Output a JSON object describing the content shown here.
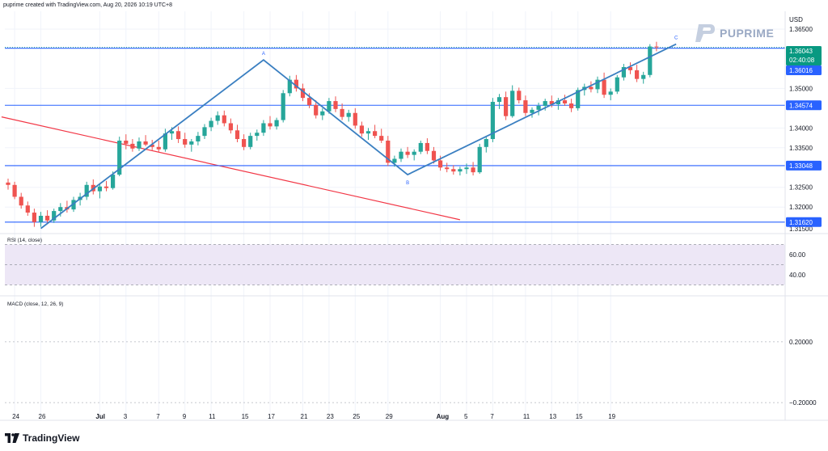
{
  "header": {
    "text": "puprime created with TradingView.com, Aug 20, 2026 10:19 UTC+8"
  },
  "brand": {
    "name": "PUPRIME"
  },
  "footer": {
    "logo_text": "TradingView"
  },
  "colors": {
    "up": "#26a69a",
    "down": "#ef5350",
    "blue_line": "#2962ff",
    "trend_line": "#3a7fc1",
    "red_line": "#f23645",
    "price_tag_green": "#089981",
    "rsi_band": "#ede7f6"
  },
  "chart_data": [
    {
      "type": "candlestick",
      "title": "",
      "currency_label": "USD",
      "y_ticks": [
        "1.36500",
        "1.35000",
        "1.34000",
        "1.33500",
        "1.32500",
        "1.32000"
      ],
      "y_tick_values": [
        1.365,
        1.35,
        1.34,
        1.335,
        1.325,
        1.32
      ],
      "ylim": [
        1.3135,
        1.3695
      ],
      "x_tick_labels": [
        "24",
        "26",
        "Jul",
        "3",
        "7",
        "9",
        "11",
        "15",
        "17",
        "21",
        "23",
        "25",
        "29",
        "Aug",
        "5",
        "7",
        "11",
        "13",
        "15",
        "19"
      ],
      "x_tick_bars": [
        1,
        5,
        14,
        18,
        23,
        27,
        31,
        36,
        40,
        45,
        49,
        53,
        58,
        66,
        70,
        74,
        79,
        83,
        87,
        92
      ],
      "bar_count": 100,
      "candles": [
        {
          "o": 1.3262,
          "h": 1.3272,
          "l": 1.3244,
          "c": 1.3256
        },
        {
          "o": 1.3256,
          "h": 1.3264,
          "l": 1.322,
          "c": 1.3226
        },
        {
          "o": 1.3226,
          "h": 1.3236,
          "l": 1.3196,
          "c": 1.3204
        },
        {
          "o": 1.3204,
          "h": 1.3214,
          "l": 1.3178,
          "c": 1.3186
        },
        {
          "o": 1.3186,
          "h": 1.3196,
          "l": 1.315,
          "c": 1.3162
        },
        {
          "o": 1.3162,
          "h": 1.3188,
          "l": 1.315,
          "c": 1.3178
        },
        {
          "o": 1.3178,
          "h": 1.3192,
          "l": 1.3158,
          "c": 1.3166
        },
        {
          "o": 1.3166,
          "h": 1.3196,
          "l": 1.316,
          "c": 1.319
        },
        {
          "o": 1.319,
          "h": 1.321,
          "l": 1.3176,
          "c": 1.32
        },
        {
          "o": 1.32,
          "h": 1.3216,
          "l": 1.3186,
          "c": 1.3194
        },
        {
          "o": 1.3194,
          "h": 1.3226,
          "l": 1.3188,
          "c": 1.3218
        },
        {
          "o": 1.3218,
          "h": 1.3236,
          "l": 1.3204,
          "c": 1.3226
        },
        {
          "o": 1.3226,
          "h": 1.3264,
          "l": 1.3218,
          "c": 1.3256
        },
        {
          "o": 1.3256,
          "h": 1.327,
          "l": 1.3232,
          "c": 1.324
        },
        {
          "o": 1.324,
          "h": 1.3258,
          "l": 1.3222,
          "c": 1.3252
        },
        {
          "o": 1.3252,
          "h": 1.3266,
          "l": 1.324,
          "c": 1.3248
        },
        {
          "o": 1.3248,
          "h": 1.329,
          "l": 1.3244,
          "c": 1.3282
        },
        {
          "o": 1.3282,
          "h": 1.3378,
          "l": 1.3278,
          "c": 1.3368
        },
        {
          "o": 1.3368,
          "h": 1.3384,
          "l": 1.3346,
          "c": 1.336
        },
        {
          "o": 1.336,
          "h": 1.3372,
          "l": 1.334,
          "c": 1.3348
        },
        {
          "o": 1.3348,
          "h": 1.3376,
          "l": 1.3342,
          "c": 1.3366
        },
        {
          "o": 1.3366,
          "h": 1.3382,
          "l": 1.3354,
          "c": 1.3358
        },
        {
          "o": 1.3358,
          "h": 1.337,
          "l": 1.3344,
          "c": 1.3352
        },
        {
          "o": 1.3352,
          "h": 1.3368,
          "l": 1.334,
          "c": 1.3346
        },
        {
          "o": 1.3346,
          "h": 1.3398,
          "l": 1.334,
          "c": 1.3386
        },
        {
          "o": 1.3386,
          "h": 1.3402,
          "l": 1.337,
          "c": 1.3392
        },
        {
          "o": 1.3392,
          "h": 1.3404,
          "l": 1.3362,
          "c": 1.3372
        },
        {
          "o": 1.3372,
          "h": 1.3388,
          "l": 1.335,
          "c": 1.3358
        },
        {
          "o": 1.3358,
          "h": 1.3372,
          "l": 1.334,
          "c": 1.3366
        },
        {
          "o": 1.3366,
          "h": 1.339,
          "l": 1.3356,
          "c": 1.338
        },
        {
          "o": 1.338,
          "h": 1.341,
          "l": 1.3372,
          "c": 1.3402
        },
        {
          "o": 1.3402,
          "h": 1.3426,
          "l": 1.3392,
          "c": 1.3418
        },
        {
          "o": 1.3418,
          "h": 1.3442,
          "l": 1.3408,
          "c": 1.3432
        },
        {
          "o": 1.3432,
          "h": 1.3444,
          "l": 1.3404,
          "c": 1.3412
        },
        {
          "o": 1.3412,
          "h": 1.3424,
          "l": 1.3386,
          "c": 1.3394
        },
        {
          "o": 1.3394,
          "h": 1.3408,
          "l": 1.3364,
          "c": 1.3372
        },
        {
          "o": 1.3372,
          "h": 1.3384,
          "l": 1.3344,
          "c": 1.3352
        },
        {
          "o": 1.3352,
          "h": 1.3388,
          "l": 1.3346,
          "c": 1.338
        },
        {
          "o": 1.338,
          "h": 1.3396,
          "l": 1.3368,
          "c": 1.3388
        },
        {
          "o": 1.3388,
          "h": 1.342,
          "l": 1.338,
          "c": 1.3412
        },
        {
          "o": 1.3412,
          "h": 1.343,
          "l": 1.3396,
          "c": 1.3404
        },
        {
          "o": 1.3404,
          "h": 1.3426,
          "l": 1.3396,
          "c": 1.342
        },
        {
          "o": 1.342,
          "h": 1.3496,
          "l": 1.3414,
          "c": 1.3488
        },
        {
          "o": 1.3488,
          "h": 1.3532,
          "l": 1.348,
          "c": 1.3522
        },
        {
          "o": 1.3522,
          "h": 1.3534,
          "l": 1.3492,
          "c": 1.35
        },
        {
          "o": 1.35,
          "h": 1.3512,
          "l": 1.3468,
          "c": 1.3476
        },
        {
          "o": 1.3476,
          "h": 1.3488,
          "l": 1.345,
          "c": 1.3458
        },
        {
          "o": 1.3458,
          "h": 1.347,
          "l": 1.3424,
          "c": 1.3432
        },
        {
          "o": 1.3432,
          "h": 1.345,
          "l": 1.342,
          "c": 1.3442
        },
        {
          "o": 1.3442,
          "h": 1.3476,
          "l": 1.3436,
          "c": 1.3468
        },
        {
          "o": 1.3468,
          "h": 1.348,
          "l": 1.344,
          "c": 1.3448
        },
        {
          "o": 1.3448,
          "h": 1.3462,
          "l": 1.342,
          "c": 1.3428
        },
        {
          "o": 1.3428,
          "h": 1.3446,
          "l": 1.3416,
          "c": 1.3438
        },
        {
          "o": 1.3438,
          "h": 1.345,
          "l": 1.3398,
          "c": 1.3406
        },
        {
          "o": 1.3406,
          "h": 1.3416,
          "l": 1.3378,
          "c": 1.3386
        },
        {
          "o": 1.3386,
          "h": 1.34,
          "l": 1.337,
          "c": 1.3392
        },
        {
          "o": 1.3392,
          "h": 1.3408,
          "l": 1.3374,
          "c": 1.338
        },
        {
          "o": 1.338,
          "h": 1.3398,
          "l": 1.3362,
          "c": 1.3368
        },
        {
          "o": 1.3368,
          "h": 1.338,
          "l": 1.3304,
          "c": 1.3312
        },
        {
          "o": 1.3312,
          "h": 1.333,
          "l": 1.3302,
          "c": 1.3322
        },
        {
          "o": 1.3322,
          "h": 1.3348,
          "l": 1.3314,
          "c": 1.334
        },
        {
          "o": 1.334,
          "h": 1.3352,
          "l": 1.3324,
          "c": 1.3332
        },
        {
          "o": 1.3332,
          "h": 1.3346,
          "l": 1.3318,
          "c": 1.334
        },
        {
          "o": 1.334,
          "h": 1.3368,
          "l": 1.3334,
          "c": 1.3362
        },
        {
          "o": 1.3362,
          "h": 1.3374,
          "l": 1.3334,
          "c": 1.3342
        },
        {
          "o": 1.3342,
          "h": 1.3352,
          "l": 1.331,
          "c": 1.3318
        },
        {
          "o": 1.3318,
          "h": 1.333,
          "l": 1.3292,
          "c": 1.33
        },
        {
          "o": 1.33,
          "h": 1.3312,
          "l": 1.3288,
          "c": 1.3296
        },
        {
          "o": 1.3296,
          "h": 1.3306,
          "l": 1.3282,
          "c": 1.329
        },
        {
          "o": 1.329,
          "h": 1.3302,
          "l": 1.328,
          "c": 1.3296
        },
        {
          "o": 1.3296,
          "h": 1.331,
          "l": 1.3284,
          "c": 1.33
        },
        {
          "o": 1.33,
          "h": 1.3314,
          "l": 1.328,
          "c": 1.3288
        },
        {
          "o": 1.3288,
          "h": 1.336,
          "l": 1.3284,
          "c": 1.3352
        },
        {
          "o": 1.3352,
          "h": 1.338,
          "l": 1.3338,
          "c": 1.3372
        },
        {
          "o": 1.3372,
          "h": 1.3476,
          "l": 1.3364,
          "c": 1.3466
        },
        {
          "o": 1.3466,
          "h": 1.3486,
          "l": 1.3448,
          "c": 1.3478
        },
        {
          "o": 1.3478,
          "h": 1.3492,
          "l": 1.342,
          "c": 1.343
        },
        {
          "o": 1.343,
          "h": 1.3508,
          "l": 1.3426,
          "c": 1.3494
        },
        {
          "o": 1.3494,
          "h": 1.3502,
          "l": 1.3462,
          "c": 1.347
        },
        {
          "o": 1.347,
          "h": 1.3482,
          "l": 1.343,
          "c": 1.3438
        },
        {
          "o": 1.3438,
          "h": 1.3452,
          "l": 1.3426,
          "c": 1.3446
        },
        {
          "o": 1.3446,
          "h": 1.3464,
          "l": 1.3432,
          "c": 1.3456
        },
        {
          "o": 1.3456,
          "h": 1.3474,
          "l": 1.3444,
          "c": 1.3468
        },
        {
          "o": 1.3468,
          "h": 1.3482,
          "l": 1.3452,
          "c": 1.346
        },
        {
          "o": 1.346,
          "h": 1.3476,
          "l": 1.3446,
          "c": 1.347
        },
        {
          "o": 1.347,
          "h": 1.3484,
          "l": 1.3456,
          "c": 1.3462
        },
        {
          "o": 1.3462,
          "h": 1.3474,
          "l": 1.344,
          "c": 1.345
        },
        {
          "o": 1.345,
          "h": 1.3502,
          "l": 1.3444,
          "c": 1.3496
        },
        {
          "o": 1.3496,
          "h": 1.3512,
          "l": 1.3482,
          "c": 1.3504
        },
        {
          "o": 1.3504,
          "h": 1.3518,
          "l": 1.349,
          "c": 1.3498
        },
        {
          "o": 1.3498,
          "h": 1.353,
          "l": 1.3488,
          "c": 1.3522
        },
        {
          "o": 1.3522,
          "h": 1.354,
          "l": 1.3476,
          "c": 1.3484
        },
        {
          "o": 1.3484,
          "h": 1.35,
          "l": 1.347,
          "c": 1.3492
        },
        {
          "o": 1.3492,
          "h": 1.3534,
          "l": 1.3486,
          "c": 1.3528
        },
        {
          "o": 1.3528,
          "h": 1.3562,
          "l": 1.352,
          "c": 1.3554
        },
        {
          "o": 1.3554,
          "h": 1.3566,
          "l": 1.3536,
          "c": 1.3546
        },
        {
          "o": 1.3546,
          "h": 1.356,
          "l": 1.3516,
          "c": 1.3524
        },
        {
          "o": 1.3524,
          "h": 1.3542,
          "l": 1.3512,
          "c": 1.3534
        },
        {
          "o": 1.3534,
          "h": 1.3612,
          "l": 1.3528,
          "c": 1.3606
        },
        {
          "o": 1.3606,
          "h": 1.3618,
          "l": 1.3594,
          "c": 1.36043
        }
      ],
      "horizontal_levels": [
        {
          "label": "1.36043",
          "value": 1.36043,
          "tag_color": "#089981",
          "sub_label": "02:40:08"
        },
        {
          "label": "1.36016",
          "value": 1.36016,
          "tag_color": "#2962ff"
        },
        {
          "label": "1.34574",
          "value": 1.34574,
          "tag_color": "#2962ff"
        },
        {
          "label": "1.33048",
          "value": 1.33048,
          "tag_color": "#2962ff"
        },
        {
          "label": "1.31620",
          "value": 1.3162,
          "tag_color": "#2962ff"
        }
      ],
      "wave_points": [
        {
          "label": "",
          "bar": 5,
          "value": 1.3146
        },
        {
          "label": "A",
          "bar": 39,
          "value": 1.3572
        },
        {
          "label": "B",
          "bar": 61,
          "value": 1.3282
        },
        {
          "label": "C",
          "bar": 102,
          "value": 1.3612
        }
      ],
      "red_trend": {
        "start": {
          "bar": -1,
          "value": 1.3428
        },
        "end": {
          "bar": 69,
          "value": 1.3168
        }
      },
      "cropped_lower_tick": "1.31500"
    },
    {
      "type": "line",
      "title": "RSI (14, close)",
      "y_ticks": [
        "60.00",
        "40.00"
      ],
      "y_tick_values": [
        60,
        40
      ],
      "band": [
        30,
        70
      ],
      "series": []
    },
    {
      "type": "line",
      "title": "MACD (close, 12, 26, 9)",
      "y_ticks": [
        "0.20000",
        "−0.20000"
      ],
      "y_tick_values": [
        0.2,
        -0.2
      ],
      "series": []
    }
  ]
}
